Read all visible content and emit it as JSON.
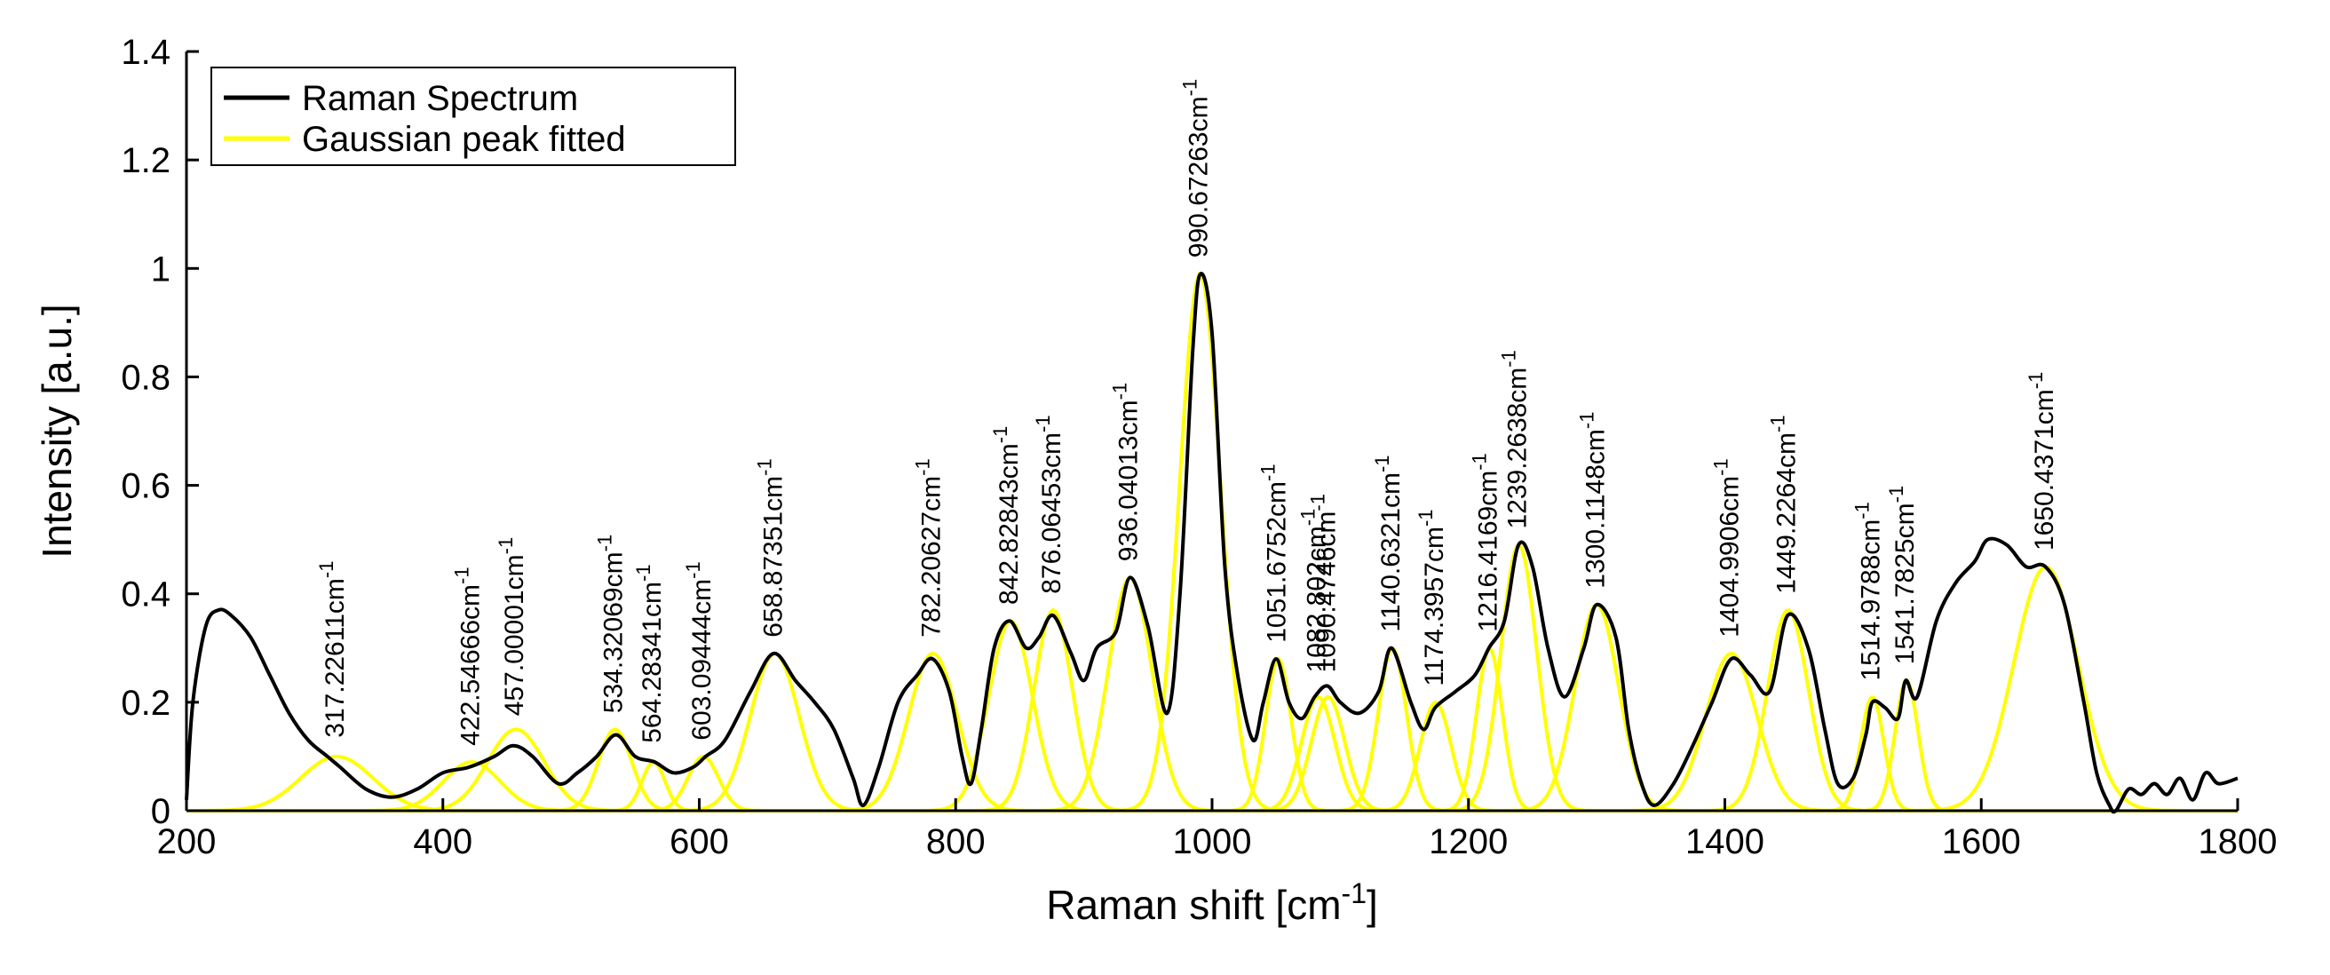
{
  "chart_data": {
    "type": "line",
    "title": "",
    "xlabel": "Raman shift [cm",
    "xlabel_sup": "-1",
    "xlabel_suffix": "]",
    "ylabel": "Intensity [a.u.]",
    "xlim": [
      200,
      1800
    ],
    "ylim": [
      0,
      1.4
    ],
    "xticks": [
      200,
      400,
      600,
      800,
      1000,
      1200,
      1400,
      1600,
      1800
    ],
    "yticks": [
      0,
      0.2,
      0.4,
      0.6,
      0.8,
      1,
      1.2,
      1.4
    ],
    "ytick_labels": [
      "0",
      "0.2",
      "0.4",
      "0.6",
      "0.8",
      "1",
      "1.2",
      "1.4"
    ],
    "legend": {
      "placement": "top-left",
      "entries": [
        {
          "label": "Raman Spectrum",
          "color": "#000000"
        },
        {
          "label": "Gaussian peak fitted",
          "color": "#ffff00"
        }
      ]
    },
    "series": [
      {
        "name": "Raman Spectrum",
        "color": "#000000",
        "x": [
          200,
          205,
          215,
          225,
          235,
          250,
          265,
          280,
          295,
          310,
          320,
          340,
          360,
          380,
          400,
          420,
          440,
          455,
          470,
          490,
          505,
          520,
          535,
          550,
          565,
          580,
          595,
          605,
          620,
          640,
          658,
          675,
          690,
          705,
          720,
          728,
          740,
          755,
          770,
          782,
          795,
          805,
          812,
          820,
          830,
          842,
          855,
          865,
          876,
          890,
          900,
          910,
          925,
          936,
          950,
          965,
          975,
          985,
          991,
          1000,
          1010,
          1020,
          1032,
          1040,
          1050,
          1060,
          1070,
          1080,
          1090,
          1100,
          1115,
          1130,
          1140,
          1155,
          1165,
          1174,
          1190,
          1205,
          1216,
          1228,
          1239,
          1250,
          1262,
          1275,
          1290,
          1300,
          1315,
          1325,
          1335,
          1345,
          1360,
          1375,
          1390,
          1405,
          1420,
          1435,
          1449,
          1465,
          1478,
          1488,
          1500,
          1510,
          1515,
          1525,
          1535,
          1541,
          1550,
          1565,
          1580,
          1595,
          1605,
          1620,
          1635,
          1650,
          1665,
          1680,
          1690,
          1700,
          1705,
          1715,
          1725,
          1735,
          1745,
          1755,
          1765,
          1775,
          1785,
          1800
        ],
        "y": [
          0.02,
          0.2,
          0.34,
          0.37,
          0.36,
          0.32,
          0.25,
          0.18,
          0.13,
          0.1,
          0.08,
          0.04,
          0.025,
          0.04,
          0.07,
          0.08,
          0.1,
          0.12,
          0.1,
          0.05,
          0.07,
          0.1,
          0.14,
          0.1,
          0.09,
          0.07,
          0.08,
          0.1,
          0.13,
          0.22,
          0.29,
          0.24,
          0.2,
          0.15,
          0.06,
          0.01,
          0.08,
          0.2,
          0.25,
          0.28,
          0.22,
          0.1,
          0.05,
          0.15,
          0.3,
          0.35,
          0.3,
          0.32,
          0.36,
          0.29,
          0.24,
          0.3,
          0.33,
          0.43,
          0.34,
          0.18,
          0.4,
          0.85,
          0.99,
          0.88,
          0.45,
          0.25,
          0.13,
          0.2,
          0.28,
          0.2,
          0.17,
          0.21,
          0.23,
          0.2,
          0.18,
          0.22,
          0.3,
          0.2,
          0.15,
          0.19,
          0.22,
          0.25,
          0.3,
          0.35,
          0.49,
          0.45,
          0.3,
          0.21,
          0.3,
          0.38,
          0.32,
          0.15,
          0.05,
          0.01,
          0.05,
          0.12,
          0.2,
          0.28,
          0.25,
          0.22,
          0.36,
          0.3,
          0.15,
          0.05,
          0.06,
          0.14,
          0.2,
          0.19,
          0.17,
          0.24,
          0.21,
          0.35,
          0.42,
          0.46,
          0.5,
          0.49,
          0.45,
          0.45,
          0.38,
          0.2,
          0.07,
          0.01,
          0.0,
          0.04,
          0.03,
          0.05,
          0.03,
          0.06,
          0.02,
          0.07,
          0.05,
          0.06
        ]
      },
      {
        "name": "Gaussian peak fitted",
        "color": "#ffff00",
        "peaks": [
          {
            "center": 317.22611,
            "height": 0.1,
            "width": 28
          },
          {
            "center": 422.54666,
            "height": 0.09,
            "width": 22
          },
          {
            "center": 457.00001,
            "height": 0.15,
            "width": 22
          },
          {
            "center": 534.32069,
            "height": 0.15,
            "width": 13
          },
          {
            "center": 564.28341,
            "height": 0.09,
            "width": 9
          },
          {
            "center": 603.09444,
            "height": 0.1,
            "width": 12
          },
          {
            "center": 658.87351,
            "height": 0.29,
            "width": 19
          },
          {
            "center": 782.20627,
            "height": 0.29,
            "width": 19
          },
          {
            "center": 842.82843,
            "height": 0.35,
            "width": 17
          },
          {
            "center": 876.06453,
            "height": 0.37,
            "width": 15
          },
          {
            "center": 936.04013,
            "height": 0.43,
            "width": 17
          },
          {
            "center": 990.67263,
            "height": 0.99,
            "width": 16
          },
          {
            "center": 1051.6752,
            "height": 0.28,
            "width": 10
          },
          {
            "center": 1082.802,
            "height": 0.21,
            "width": 13
          },
          {
            "center": 1090.4746,
            "height": 0.21,
            "width": 13
          },
          {
            "center": 1140.6321,
            "height": 0.3,
            "width": 11
          },
          {
            "center": 1174.3957,
            "height": 0.2,
            "width": 12
          },
          {
            "center": 1216.4169,
            "height": 0.3,
            "width": 10
          },
          {
            "center": 1239.2638,
            "height": 0.49,
            "width": 14
          },
          {
            "center": 1300.1148,
            "height": 0.38,
            "width": 17
          },
          {
            "center": 1404.9906,
            "height": 0.29,
            "width": 20
          },
          {
            "center": 1449.2264,
            "height": 0.37,
            "width": 16
          },
          {
            "center": 1514.9788,
            "height": 0.21,
            "width": 9
          },
          {
            "center": 1541.7825,
            "height": 0.24,
            "width": 9
          },
          {
            "center": 1650.4371,
            "height": 0.45,
            "width": 25
          }
        ]
      }
    ],
    "peak_labels": [
      {
        "x": 317.22611,
        "text": "317.22611cm",
        "sup": "-1",
        "anchor_y": 0.125
      },
      {
        "x": 422.54666,
        "text": "422.54666cm",
        "sup": "-1",
        "anchor_y": 0.11
      },
      {
        "x": 457.00001,
        "text": "457.00001cm",
        "sup": "-1",
        "anchor_y": 0.165
      },
      {
        "x": 534.32069,
        "text": "534.32069cm",
        "sup": "-1",
        "anchor_y": 0.17
      },
      {
        "x": 564.28341,
        "text": "564.28341cm",
        "sup": "-1",
        "anchor_y": 0.115
      },
      {
        "x": 603.09444,
        "text": "603.09444cm",
        "sup": "-1",
        "anchor_y": 0.12
      },
      {
        "x": 658.87351,
        "text": "658.87351cm",
        "sup": "-1",
        "anchor_y": 0.31
      },
      {
        "x": 782.20627,
        "text": "782.20627cm",
        "sup": "-1",
        "anchor_y": 0.31
      },
      {
        "x": 842.82843,
        "text": "842.82843cm",
        "sup": "-1",
        "anchor_y": 0.37
      },
      {
        "x": 876.06453,
        "text": "876.06453cm",
        "sup": "-1",
        "anchor_y": 0.39
      },
      {
        "x": 936.04013,
        "text": "936.04013cm",
        "sup": "-1",
        "anchor_y": 0.45
      },
      {
        "x": 990.67263,
        "text": "990.67263cm",
        "sup": "-1",
        "anchor_y": 1.01
      },
      {
        "x": 1051.6752,
        "text": "1051.6752cm",
        "sup": "-1",
        "anchor_y": 0.3
      },
      {
        "x": 1082.802,
        "text": "1082.802cm",
        "sup": "-1",
        "anchor_y": 0.245
      },
      {
        "x": 1090.4746,
        "text": "1090.4746cm",
        "sup": "-1",
        "anchor_y": 0.245
      },
      {
        "x": 1140.6321,
        "text": "1140.6321cm",
        "sup": "-1",
        "anchor_y": 0.32
      },
      {
        "x": 1174.3957,
        "text": "1174.3957cm",
        "sup": "-1",
        "anchor_y": 0.22
      },
      {
        "x": 1216.4169,
        "text": "1216.4169cm",
        "sup": "-1",
        "anchor_y": 0.32
      },
      {
        "x": 1239.2638,
        "text": "1239.2638cm",
        "sup": "-1",
        "anchor_y": 0.51
      },
      {
        "x": 1300.1148,
        "text": "1300.1148cm",
        "sup": "-1",
        "anchor_y": 0.4
      },
      {
        "x": 1404.9906,
        "text": "1404.9906cm",
        "sup": "-1",
        "anchor_y": 0.31
      },
      {
        "x": 1449.2264,
        "text": "1449.2264cm",
        "sup": "-1",
        "anchor_y": 0.39
      },
      {
        "x": 1514.9788,
        "text": "1514.9788cm",
        "sup": "-1",
        "anchor_y": 0.23
      },
      {
        "x": 1541.7825,
        "text": "1541.7825cm",
        "sup": "-1",
        "anchor_y": 0.26
      },
      {
        "x": 1650.4371,
        "text": "1650.4371cm",
        "sup": "-1",
        "anchor_y": 0.47
      }
    ]
  }
}
